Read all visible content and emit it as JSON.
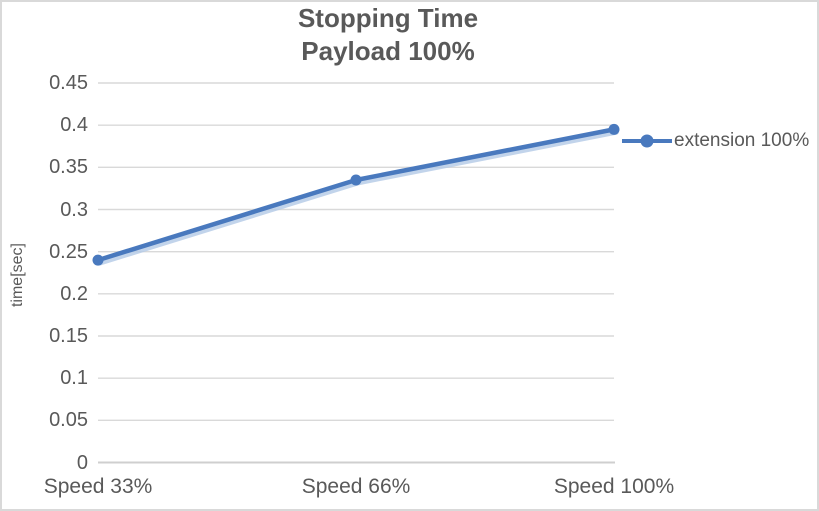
{
  "chart": {
    "title": "Stopping Time",
    "subtitle": "Payload 100%"
  },
  "chart_data": {
    "type": "line",
    "title": "Stopping Time",
    "subtitle": "Payload 100%",
    "categories": [
      "Speed 33%",
      "Speed 66%",
      "Speed 100%"
    ],
    "series": [
      {
        "name": "extension 100%",
        "values": [
          0.24,
          0.335,
          0.395
        ],
        "color": "#4979BE",
        "marker": "circle"
      }
    ],
    "xlabel": "",
    "ylabel": "time[sec]",
    "ylim": [
      0,
      0.45
    ],
    "ytick_step": 0.05,
    "ytick_labels": [
      "0.45",
      "0.4",
      "0.35",
      "0.3",
      "0.25",
      "0.2",
      "0.15",
      "0.1",
      "0.05",
      "0"
    ],
    "grid": true,
    "legend_position": "right",
    "colors": {
      "gridline": "#D9D9D9",
      "axis_line": "#CFCFCF",
      "text": "#595959",
      "line_shadow": "#B3C9E6"
    }
  }
}
